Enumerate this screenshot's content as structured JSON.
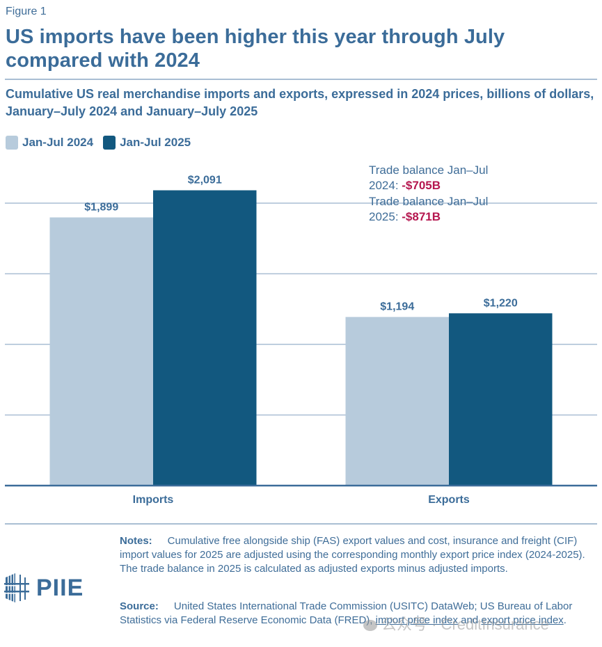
{
  "figure_label": "Figure 1",
  "title": "US imports have been higher this year through July compared with 2024",
  "subtitle": "Cumulative US real merchandise imports and exports, expressed in 2024 prices, billions of dollars, January–July 2024 and January–July 2025",
  "colors": {
    "series_2024": "#b7cbdc",
    "series_2025": "#12587f",
    "gridline": "#a9bed3",
    "axis": "#3b6c99",
    "label": "#3b6c99",
    "negative": "#b5174f"
  },
  "annotation": {
    "line1_prefix": "Trade balance Jan–Jul",
    "line1_year": "2024: ",
    "line1_value": "-$705B",
    "line2_prefix": "Trade balance Jan–Jul",
    "line2_year": "2025: ",
    "line2_value": "-$871B"
  },
  "chart_data": {
    "type": "bar",
    "title": "US imports have been higher this year through July compared with 2024",
    "subtitle": "Cumulative US real merchandise imports and exports, expressed in 2024 prices, billions of dollars, January–July 2024 and January–July 2025",
    "categories": [
      "Imports",
      "Exports"
    ],
    "series": [
      {
        "name": "Jan-Jul 2024",
        "values": [
          1899,
          1194
        ],
        "labels": [
          "$1,899",
          "$1,194"
        ]
      },
      {
        "name": "Jan-Jul 2025",
        "values": [
          2091,
          1220
        ],
        "labels": [
          "$2,091",
          "$1,220"
        ]
      }
    ],
    "xlabel": "",
    "ylabel": "",
    "ylim": [
      0,
      2000
    ],
    "gridlines": [
      500,
      1000,
      1500,
      2000
    ],
    "y_tick_labels_shown": false,
    "grid": true,
    "legend": "top-left"
  },
  "notes": {
    "label": "Notes:",
    "text": "Cumulative free alongside ship (FAS) export values and cost, insurance and freight (CIF) import values for 2025 are adjusted using the corresponding monthly export price index (2024-2025). The trade balance in 2025 is calculated as adjusted exports minus adjusted imports."
  },
  "source": {
    "label": "Source:",
    "text": "United States International Trade Commission (USITC) DataWeb; US Bureau of Labor Statistics via Federal Reserve Economic Data (FRED), ",
    "link1": "import price index",
    "middle": " and ",
    "link2": "export price index",
    "end": "."
  },
  "logo": {
    "text": "PIIE"
  },
  "watermark": {
    "text": "公众号 · CreditInsurance"
  }
}
